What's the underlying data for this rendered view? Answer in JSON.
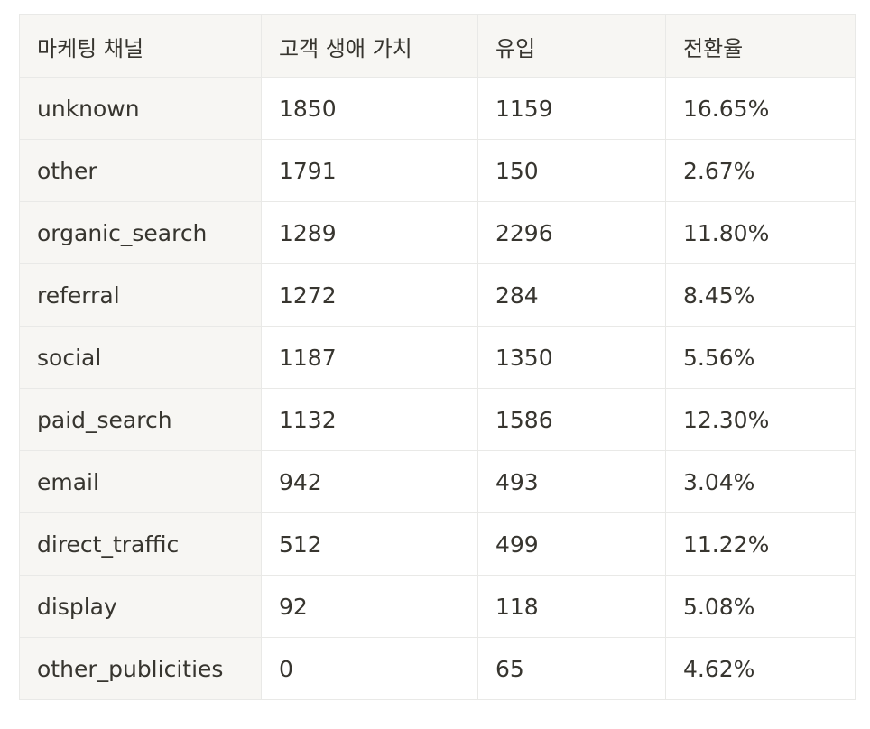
{
  "table": {
    "headers": [
      "마케팅 채널",
      "고객 생애 가치",
      "유입",
      "전환율"
    ],
    "rows": [
      [
        "unknown",
        "1850",
        "1159",
        "16.65%"
      ],
      [
        "other",
        "1791",
        "150",
        "2.67%"
      ],
      [
        "organic_search",
        "1289",
        "2296",
        "11.80%"
      ],
      [
        "referral",
        "1272",
        "284",
        "8.45%"
      ],
      [
        "social",
        "1187",
        "1350",
        "5.56%"
      ],
      [
        "paid_search",
        "1132",
        "1586",
        "12.30%"
      ],
      [
        "email",
        "942",
        "493",
        "3.04%"
      ],
      [
        "direct_traffic",
        "512",
        "499",
        "11.22%"
      ],
      [
        "display",
        "92",
        "118",
        "5.08%"
      ],
      [
        "other_publicities",
        "0",
        "65",
        "4.62%"
      ]
    ]
  }
}
